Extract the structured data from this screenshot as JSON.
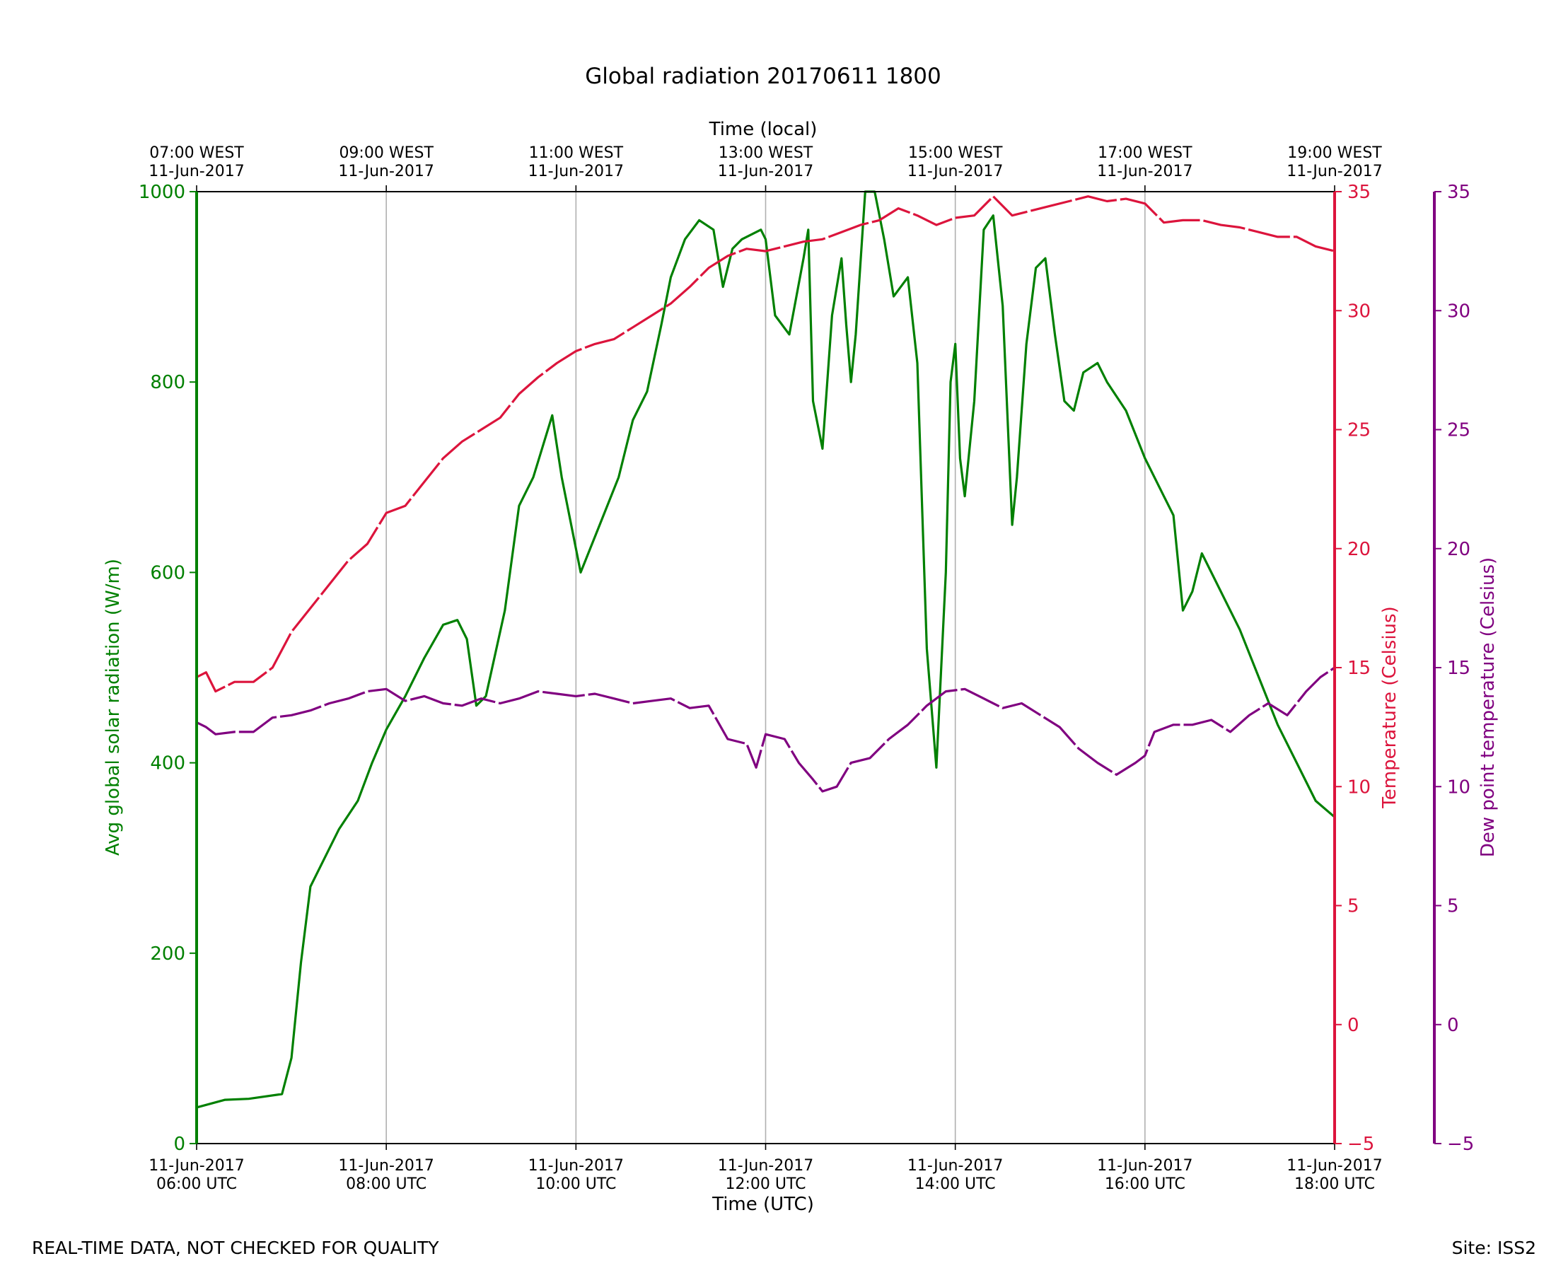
{
  "footer": {
    "left_note": "REAL-TIME DATA, NOT CHECKED FOR QUALITY",
    "right_note": "Site: ISS2"
  },
  "chart_data": {
    "type": "line",
    "title": "Global radiation 20170611 1800",
    "xlabel": "Time (UTC)",
    "xlabel_top": "Time (local)",
    "x_range_hours_utc": [
      6,
      18
    ],
    "x_ticks_bottom": [
      {
        "hour": 6,
        "line1": "11-Jun-2017",
        "line2": "06:00 UTC"
      },
      {
        "hour": 8,
        "line1": "11-Jun-2017",
        "line2": "08:00 UTC"
      },
      {
        "hour": 10,
        "line1": "11-Jun-2017",
        "line2": "10:00 UTC"
      },
      {
        "hour": 12,
        "line1": "11-Jun-2017",
        "line2": "12:00 UTC"
      },
      {
        "hour": 14,
        "line1": "11-Jun-2017",
        "line2": "14:00 UTC"
      },
      {
        "hour": 16,
        "line1": "11-Jun-2017",
        "line2": "16:00 UTC"
      },
      {
        "hour": 18,
        "line1": "11-Jun-2017",
        "line2": "18:00 UTC"
      }
    ],
    "x_ticks_top": [
      {
        "hour": 6,
        "line1": "07:00 WEST",
        "line2": "11-Jun-2017"
      },
      {
        "hour": 8,
        "line1": "09:00 WEST",
        "line2": "11-Jun-2017"
      },
      {
        "hour": 10,
        "line1": "11:00 WEST",
        "line2": "11-Jun-2017"
      },
      {
        "hour": 12,
        "line1": "13:00 WEST",
        "line2": "11-Jun-2017"
      },
      {
        "hour": 14,
        "line1": "15:00 WEST",
        "line2": "11-Jun-2017"
      },
      {
        "hour": 16,
        "line1": "17:00 WEST",
        "line2": "11-Jun-2017"
      },
      {
        "hour": 18,
        "line1": "19:00 WEST",
        "line2": "11-Jun-2017"
      }
    ],
    "grid": "vertical",
    "axes": [
      {
        "id": "radiation",
        "side": "left",
        "label": "Avg global solar radiation (W/m)",
        "ylim": [
          0,
          1000
        ],
        "ticks": [
          0,
          200,
          400,
          600,
          800,
          1000
        ],
        "color": "#008000"
      },
      {
        "id": "temperature",
        "side": "right",
        "label": "Temperature (Celsius)",
        "ylim": [
          -5,
          35
        ],
        "ticks": [
          -5,
          0,
          5,
          10,
          15,
          20,
          25,
          30,
          35
        ],
        "color": "#dc143c"
      },
      {
        "id": "dewpoint",
        "side": "right-outer",
        "label": "Dew point temperature (Celsius)",
        "ylim": [
          -5,
          35
        ],
        "ticks": [
          -5,
          0,
          5,
          10,
          15,
          20,
          25,
          30,
          35
        ],
        "color": "#800080"
      }
    ],
    "series": [
      {
        "axis": "radiation",
        "color": "#008000",
        "style": "solid",
        "points": [
          [
            6.0,
            38
          ],
          [
            6.3,
            46
          ],
          [
            6.55,
            47
          ],
          [
            6.9,
            52
          ],
          [
            7.0,
            90
          ],
          [
            7.1,
            190
          ],
          [
            7.2,
            270
          ],
          [
            7.35,
            300
          ],
          [
            7.5,
            330
          ],
          [
            7.7,
            360
          ],
          [
            7.85,
            400
          ],
          [
            8.0,
            435
          ],
          [
            8.2,
            470
          ],
          [
            8.4,
            510
          ],
          [
            8.6,
            545
          ],
          [
            8.75,
            550
          ],
          [
            8.85,
            530
          ],
          [
            8.95,
            460
          ],
          [
            9.05,
            470
          ],
          [
            9.25,
            560
          ],
          [
            9.4,
            670
          ],
          [
            9.55,
            700
          ],
          [
            9.75,
            765
          ],
          [
            9.85,
            700
          ],
          [
            10.05,
            600
          ],
          [
            10.25,
            650
          ],
          [
            10.45,
            700
          ],
          [
            10.6,
            760
          ],
          [
            10.75,
            790
          ],
          [
            10.9,
            860
          ],
          [
            11.0,
            910
          ],
          [
            11.15,
            950
          ],
          [
            11.3,
            970
          ],
          [
            11.45,
            960
          ],
          [
            11.55,
            900
          ],
          [
            11.65,
            940
          ],
          [
            11.75,
            950
          ],
          [
            11.95,
            960
          ],
          [
            12.0,
            950
          ],
          [
            12.1,
            870
          ],
          [
            12.25,
            850
          ],
          [
            12.4,
            930
          ],
          [
            12.45,
            960
          ],
          [
            12.5,
            780
          ],
          [
            12.6,
            730
          ],
          [
            12.7,
            870
          ],
          [
            12.8,
            930
          ],
          [
            12.85,
            860
          ],
          [
            12.9,
            800
          ],
          [
            12.95,
            850
          ],
          [
            13.05,
            1000
          ],
          [
            13.15,
            1000
          ],
          [
            13.25,
            950
          ],
          [
            13.35,
            890
          ],
          [
            13.5,
            910
          ],
          [
            13.6,
            820
          ],
          [
            13.7,
            520
          ],
          [
            13.8,
            395
          ],
          [
            13.9,
            600
          ],
          [
            13.95,
            800
          ],
          [
            14.0,
            840
          ],
          [
            14.05,
            720
          ],
          [
            14.1,
            680
          ],
          [
            14.2,
            780
          ],
          [
            14.3,
            960
          ],
          [
            14.4,
            975
          ],
          [
            14.5,
            880
          ],
          [
            14.6,
            650
          ],
          [
            14.65,
            700
          ],
          [
            14.75,
            840
          ],
          [
            14.85,
            920
          ],
          [
            14.95,
            930
          ],
          [
            15.05,
            850
          ],
          [
            15.15,
            780
          ],
          [
            15.25,
            770
          ],
          [
            15.35,
            810
          ],
          [
            15.5,
            820
          ],
          [
            15.6,
            800
          ],
          [
            15.8,
            770
          ],
          [
            16.0,
            720
          ],
          [
            16.2,
            680
          ],
          [
            16.3,
            660
          ],
          [
            16.4,
            560
          ],
          [
            16.5,
            580
          ],
          [
            16.6,
            620
          ],
          [
            16.7,
            600
          ],
          [
            16.85,
            570
          ],
          [
            17.0,
            540
          ],
          [
            17.2,
            490
          ],
          [
            17.4,
            440
          ],
          [
            17.6,
            400
          ],
          [
            17.8,
            360
          ],
          [
            18.0,
            343
          ]
        ]
      },
      {
        "axis": "temperature",
        "color": "#dc143c",
        "style": "dashed",
        "points": [
          [
            6.0,
            14.6
          ],
          [
            6.1,
            14.8
          ],
          [
            6.2,
            14.0
          ],
          [
            6.4,
            14.4
          ],
          [
            6.6,
            14.4
          ],
          [
            6.8,
            15.0
          ],
          [
            7.0,
            16.5
          ],
          [
            7.2,
            17.5
          ],
          [
            7.4,
            18.5
          ],
          [
            7.6,
            19.5
          ],
          [
            7.8,
            20.2
          ],
          [
            8.0,
            21.5
          ],
          [
            8.2,
            21.8
          ],
          [
            8.4,
            22.8
          ],
          [
            8.6,
            23.8
          ],
          [
            8.8,
            24.5
          ],
          [
            9.0,
            25.0
          ],
          [
            9.2,
            25.5
          ],
          [
            9.4,
            26.5
          ],
          [
            9.6,
            27.2
          ],
          [
            9.8,
            27.8
          ],
          [
            10.0,
            28.3
          ],
          [
            10.2,
            28.6
          ],
          [
            10.4,
            28.8
          ],
          [
            10.6,
            29.3
          ],
          [
            10.8,
            29.8
          ],
          [
            11.0,
            30.3
          ],
          [
            11.2,
            31.0
          ],
          [
            11.4,
            31.8
          ],
          [
            11.6,
            32.3
          ],
          [
            11.8,
            32.6
          ],
          [
            12.0,
            32.5
          ],
          [
            12.2,
            32.7
          ],
          [
            12.4,
            32.9
          ],
          [
            12.6,
            33.0
          ],
          [
            12.8,
            33.3
          ],
          [
            13.0,
            33.6
          ],
          [
            13.2,
            33.8
          ],
          [
            13.4,
            34.3
          ],
          [
            13.6,
            34.0
          ],
          [
            13.8,
            33.6
          ],
          [
            14.0,
            33.9
          ],
          [
            14.2,
            34.0
          ],
          [
            14.4,
            34.8
          ],
          [
            14.6,
            34.0
          ],
          [
            14.8,
            34.2
          ],
          [
            15.0,
            34.4
          ],
          [
            15.2,
            34.6
          ],
          [
            15.4,
            34.8
          ],
          [
            15.6,
            34.6
          ],
          [
            15.8,
            34.7
          ],
          [
            16.0,
            34.5
          ],
          [
            16.2,
            33.7
          ],
          [
            16.4,
            33.8
          ],
          [
            16.6,
            33.8
          ],
          [
            16.8,
            33.6
          ],
          [
            17.0,
            33.5
          ],
          [
            17.2,
            33.3
          ],
          [
            17.4,
            33.1
          ],
          [
            17.6,
            33.1
          ],
          [
            17.8,
            32.7
          ],
          [
            18.0,
            32.5
          ]
        ]
      },
      {
        "axis": "dewpoint",
        "color": "#800080",
        "style": "dashed",
        "points": [
          [
            6.0,
            12.7
          ],
          [
            6.1,
            12.5
          ],
          [
            6.2,
            12.2
          ],
          [
            6.4,
            12.3
          ],
          [
            6.6,
            12.3
          ],
          [
            6.8,
            12.9
          ],
          [
            7.0,
            13.0
          ],
          [
            7.2,
            13.2
          ],
          [
            7.4,
            13.5
          ],
          [
            7.6,
            13.7
          ],
          [
            7.8,
            14.0
          ],
          [
            8.0,
            14.1
          ],
          [
            8.2,
            13.6
          ],
          [
            8.4,
            13.8
          ],
          [
            8.6,
            13.5
          ],
          [
            8.8,
            13.4
          ],
          [
            9.0,
            13.7
          ],
          [
            9.2,
            13.5
          ],
          [
            9.4,
            13.7
          ],
          [
            9.6,
            14.0
          ],
          [
            9.8,
            13.9
          ],
          [
            10.0,
            13.8
          ],
          [
            10.2,
            13.9
          ],
          [
            10.4,
            13.7
          ],
          [
            10.6,
            13.5
          ],
          [
            10.8,
            13.6
          ],
          [
            11.0,
            13.7
          ],
          [
            11.2,
            13.3
          ],
          [
            11.4,
            13.4
          ],
          [
            11.6,
            12.0
          ],
          [
            11.8,
            11.8
          ],
          [
            11.9,
            10.8
          ],
          [
            12.0,
            12.2
          ],
          [
            12.2,
            12.0
          ],
          [
            12.35,
            11.0
          ],
          [
            12.5,
            10.3
          ],
          [
            12.6,
            9.8
          ],
          [
            12.75,
            10.0
          ],
          [
            12.9,
            11.0
          ],
          [
            13.1,
            11.2
          ],
          [
            13.3,
            12.0
          ],
          [
            13.5,
            12.6
          ],
          [
            13.7,
            13.4
          ],
          [
            13.9,
            14.0
          ],
          [
            14.1,
            14.1
          ],
          [
            14.3,
            13.7
          ],
          [
            14.5,
            13.3
          ],
          [
            14.7,
            13.5
          ],
          [
            14.9,
            13.0
          ],
          [
            15.1,
            12.5
          ],
          [
            15.3,
            11.6
          ],
          [
            15.5,
            11.0
          ],
          [
            15.7,
            10.5
          ],
          [
            15.9,
            11.0
          ],
          [
            16.0,
            11.3
          ],
          [
            16.1,
            12.3
          ],
          [
            16.3,
            12.6
          ],
          [
            16.5,
            12.6
          ],
          [
            16.7,
            12.8
          ],
          [
            16.9,
            12.3
          ],
          [
            17.1,
            13.0
          ],
          [
            17.3,
            13.5
          ],
          [
            17.5,
            13.0
          ],
          [
            17.7,
            14.0
          ],
          [
            17.85,
            14.6
          ],
          [
            18.0,
            15.0
          ]
        ]
      }
    ]
  }
}
